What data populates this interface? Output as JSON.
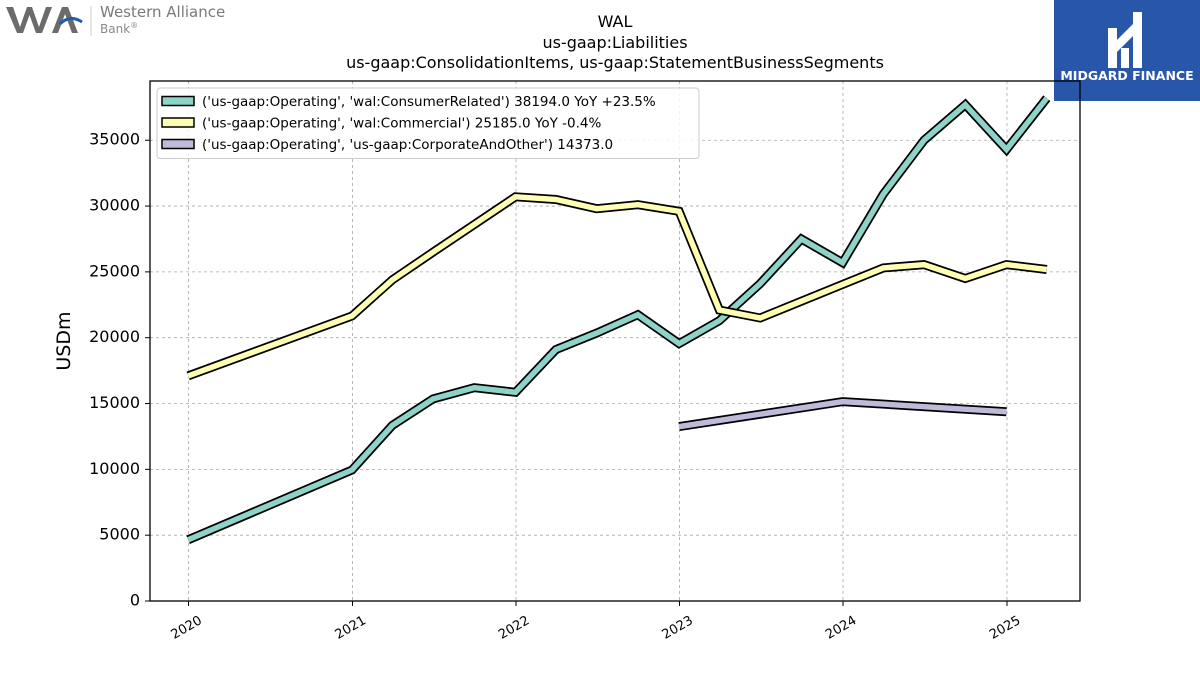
{
  "logos": {
    "left": {
      "line1": "Western Alliance",
      "line2": "Bank",
      "reg": "®",
      "monogram_color": "#6b6b6b",
      "accent": "#1f5fa8"
    },
    "right": {
      "text": "MIDGARD FINANCE",
      "background": "#2856a8",
      "foreground": "#ffffff"
    }
  },
  "chart_data": {
    "type": "line",
    "title": [
      "WAL",
      "us-gaap:Liabilities",
      "us-gaap:ConsolidationItems, us-gaap:StatementBusinessSegments"
    ],
    "xlabel": "",
    "ylabel": "USDm",
    "ylim": [
      0,
      39500
    ],
    "xlim": [
      "2019-10-07",
      "2025-06-13"
    ],
    "yticks": [
      0,
      5000,
      10000,
      15000,
      20000,
      25000,
      30000,
      35000
    ],
    "xticks": [
      {
        "label": "2020",
        "date": "2020-01-01"
      },
      {
        "label": "2021",
        "date": "2021-01-01"
      },
      {
        "label": "2022",
        "date": "2022-01-01"
      },
      {
        "label": "2023",
        "date": "2023-01-01"
      },
      {
        "label": "2024",
        "date": "2024-01-01"
      },
      {
        "label": "2025",
        "date": "2025-01-01"
      }
    ],
    "grid": true,
    "legend_position": "top-left",
    "series": [
      {
        "name": "('us-gaap:Operating', 'wal:ConsumerRelated') 38194.0 YoY +23.5%",
        "color": "#8dd3c7",
        "points": [
          [
            "2019-12-31",
            4650
          ],
          [
            "2020-12-31",
            9950
          ],
          [
            "2021-03-31",
            13350
          ],
          [
            "2021-06-30",
            15350
          ],
          [
            "2021-09-30",
            16200
          ],
          [
            "2021-12-31",
            15850
          ],
          [
            "2022-03-31",
            19100
          ],
          [
            "2022-06-30",
            20350
          ],
          [
            "2022-09-30",
            21750
          ],
          [
            "2022-12-31",
            19550
          ],
          [
            "2023-03-31",
            21300
          ],
          [
            "2023-06-30",
            24100
          ],
          [
            "2023-09-30",
            27500
          ],
          [
            "2023-12-31",
            25700
          ],
          [
            "2024-03-31",
            30900
          ],
          [
            "2024-06-30",
            35000
          ],
          [
            "2024-09-30",
            37700
          ],
          [
            "2024-12-31",
            34300
          ],
          [
            "2025-03-31",
            38194
          ]
        ]
      },
      {
        "name": "('us-gaap:Operating', 'wal:Commercial') 25185.0 YoY -0.4%",
        "color": "#ffffb3",
        "points": [
          [
            "2019-12-31",
            17100
          ],
          [
            "2020-12-31",
            21650
          ],
          [
            "2021-03-31",
            24400
          ],
          [
            "2021-06-30",
            26500
          ],
          [
            "2021-12-31",
            30700
          ],
          [
            "2022-03-31",
            30500
          ],
          [
            "2022-06-30",
            29800
          ],
          [
            "2022-09-30",
            30100
          ],
          [
            "2022-12-31",
            29600
          ],
          [
            "2023-03-31",
            22100
          ],
          [
            "2023-06-30",
            21500
          ],
          [
            "2023-12-31",
            24050
          ],
          [
            "2024-03-31",
            25300
          ],
          [
            "2024-06-30",
            25550
          ],
          [
            "2024-09-30",
            24500
          ],
          [
            "2024-12-31",
            25550
          ],
          [
            "2025-03-31",
            25185
          ]
        ]
      },
      {
        "name": "('us-gaap:Operating', 'us-gaap:CorporateAndOther') 14373.0",
        "color": "#bebada",
        "points": [
          [
            "2022-12-31",
            13250
          ],
          [
            "2023-12-31",
            15150
          ],
          [
            "2024-12-31",
            14373
          ]
        ]
      }
    ]
  }
}
